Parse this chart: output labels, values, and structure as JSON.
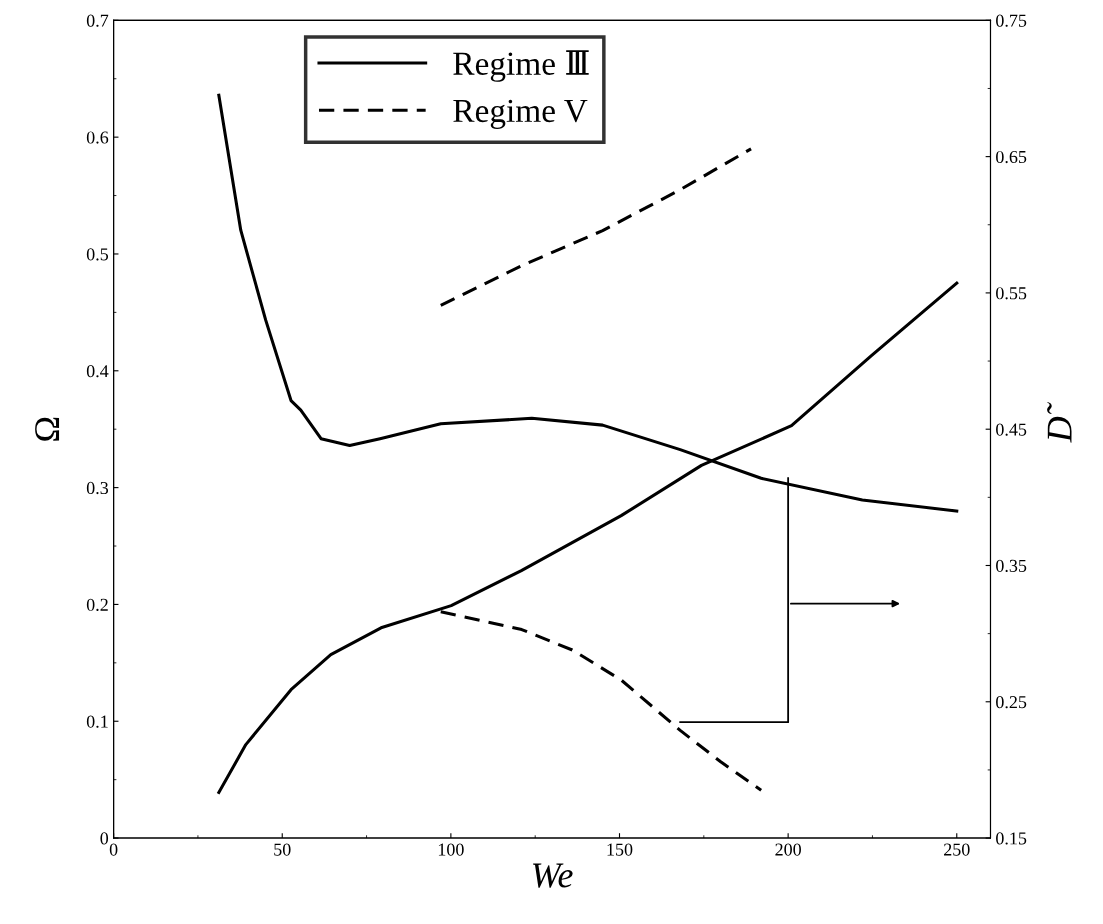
{
  "chart_data": {
    "type": "line",
    "xlabel": "We",
    "ylabel": "Ω",
    "y2label": "D̃",
    "xlim": [
      0,
      260
    ],
    "xticks": [
      0,
      50,
      100,
      150,
      200,
      250
    ],
    "ylim": [
      0,
      0.7
    ],
    "yticks": [
      0,
      0.1,
      0.2,
      0.3,
      0.4,
      0.5,
      0.6,
      0.7
    ],
    "y2lim": [
      0.15,
      0.75
    ],
    "y2ticks": [
      0.15,
      0.25,
      0.35,
      0.45,
      0.55,
      0.65,
      0.75
    ],
    "grid": false,
    "legend": "top left",
    "marker": "none",
    "series": [
      {
        "name": "Regime Ⅲ",
        "color": "#000000",
        "line_style": "solid",
        "x": [
          31.2,
          39.2,
          52.6,
          64.4,
          79.3,
          100.1,
          120.9,
          150.5,
          174.3,
          201.0,
          224.7,
          250.0
        ],
        "values": [
          0.039,
          0.08,
          0.127,
          0.157,
          0.18,
          0.199,
          0.229,
          0.276,
          0.319,
          0.353,
          0.413,
          0.475
        ]
      },
      {
        "name": "Regime V",
        "color": "#000000",
        "line_style": "dashed",
        "x": [
          97,
          121,
          145,
          168,
          189
        ],
        "values": [
          0.456,
          0.49,
          0.52,
          0.555,
          0.59
        ]
      },
      {
        "color": "#000000",
        "line_style": "solid",
        "axis": "y2",
        "x": [
          31.2,
          37.7,
          45.1,
          52.6,
          55.5,
          61.5,
          70,
          79,
          97,
          124,
          145,
          168,
          192,
          222,
          250
        ],
        "values": [
          0.695,
          0.596,
          0.53,
          0.471,
          0.464,
          0.443,
          0.438,
          0.443,
          0.454,
          0.458,
          0.453,
          0.435,
          0.414,
          0.398,
          0.39
        ]
      },
      {
        "color": "#000000",
        "line_style": "dashed",
        "axis": "y2",
        "x": [
          97,
          121,
          136,
          150.5,
          168,
          180,
          192
        ],
        "values": [
          0.316,
          0.303,
          0.288,
          0.266,
          0.229,
          0.206,
          0.185
        ]
      }
    ]
  }
}
